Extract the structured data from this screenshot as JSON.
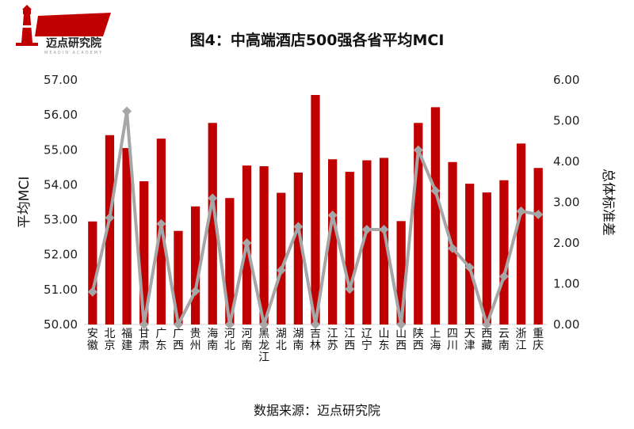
{
  "logo": {
    "name": "迈点研究院",
    "subtitle": "MEADIN ACADEMY"
  },
  "source": "数据来源：迈点研究院",
  "colors": {
    "bar": "#c00000",
    "line": "#a6a6a6",
    "axis": "#d9d9d9"
  },
  "chart_data": {
    "type": "bar+line",
    "title": "图4：中高端酒店500强各省平均MCI",
    "ylabel": "平均MCI",
    "y2label": "总体标准差",
    "ylim": [
      50,
      57
    ],
    "y2lim": [
      0,
      6
    ],
    "yticks": [
      "50.00",
      "51.00",
      "52.00",
      "53.00",
      "54.00",
      "55.00",
      "56.00",
      "57.00"
    ],
    "y2ticks": [
      "0.00",
      "1.00",
      "2.00",
      "3.00",
      "4.00",
      "5.00",
      "6.00"
    ],
    "categories": [
      "安徽",
      "北京",
      "福建",
      "甘肃",
      "广东",
      "广西",
      "贵州",
      "海南",
      "河北",
      "河南",
      "黑龙江",
      "湖北",
      "湖南",
      "吉林",
      "江苏",
      "江西",
      "辽宁",
      "山东",
      "山西",
      "陕西",
      "上海",
      "四川",
      "天津",
      "西藏",
      "云南",
      "浙江",
      "重庆"
    ],
    "series": [
      {
        "type": "bar",
        "axis": "left",
        "values": [
          52.95,
          55.42,
          55.05,
          54.1,
          55.32,
          52.68,
          53.38,
          55.77,
          53.62,
          54.55,
          54.53,
          53.77,
          54.35,
          56.57,
          54.73,
          54.37,
          54.7,
          54.77,
          52.96,
          55.77,
          56.22,
          54.65,
          54.03,
          53.78,
          54.13,
          55.18,
          54.48
        ]
      },
      {
        "type": "line",
        "axis": "right",
        "values": [
          0.8,
          2.62,
          5.23,
          0.0,
          2.47,
          0.0,
          0.82,
          3.1,
          0.0,
          2.0,
          0.0,
          1.33,
          2.4,
          0.0,
          2.68,
          0.87,
          2.33,
          2.33,
          0.0,
          4.28,
          3.28,
          1.87,
          1.4,
          0.0,
          1.18,
          2.78,
          2.7
        ]
      }
    ]
  }
}
